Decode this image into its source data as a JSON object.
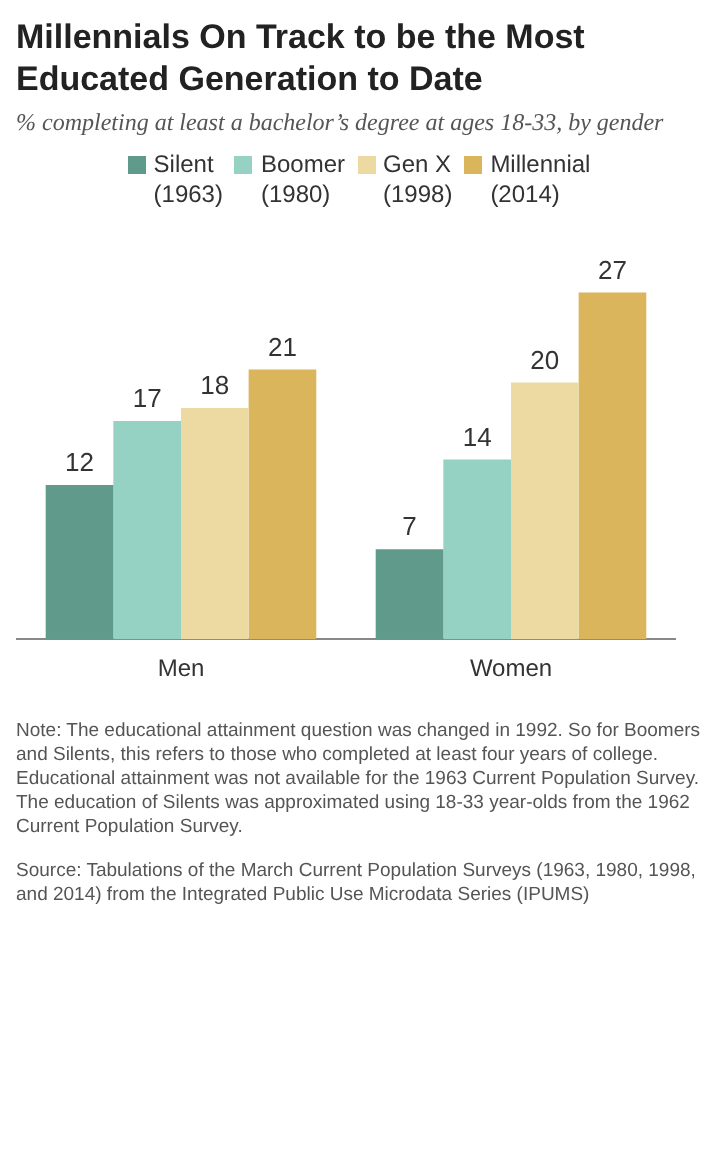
{
  "chart_data": {
    "type": "bar",
    "title": "Millennials On Track to be the Most Educated Generation to Date",
    "subtitle": "% completing at least a bachelor’s degree at ages 18-33, by gender",
    "categories": [
      "Men",
      "Women"
    ],
    "series": [
      {
        "name": "Silent (1963)",
        "color": "#5f9a8b",
        "values": [
          12,
          7
        ]
      },
      {
        "name": "Boomer (1980)",
        "color": "#95d2c3",
        "values": [
          17,
          14
        ]
      },
      {
        "name": "Gen X (1998)",
        "color": "#eddaa2",
        "values": [
          18,
          20
        ]
      },
      {
        "name": "Millennial (2014)",
        "color": "#dbb55b",
        "values": [
          21,
          27
        ]
      }
    ],
    "data_labels": true,
    "legend": "top",
    "grid": false,
    "tick_labels": "x",
    "annotations": [
      "Note: The educational attainment question was changed in 1992. So for Boomers and Silents, this refers to those who completed at least four years of college. Educational attainment was not available for the 1963 Current Population Survey. The education of Silents was approximated using 18-33 year-olds from the 1962 Current Population Survey.",
      "Source: Tabulations of the March Current Population Surveys (1963, 1980, 1998, and 2014) from the Integrated Public Use Microdata Series (IPUMS)"
    ]
  }
}
